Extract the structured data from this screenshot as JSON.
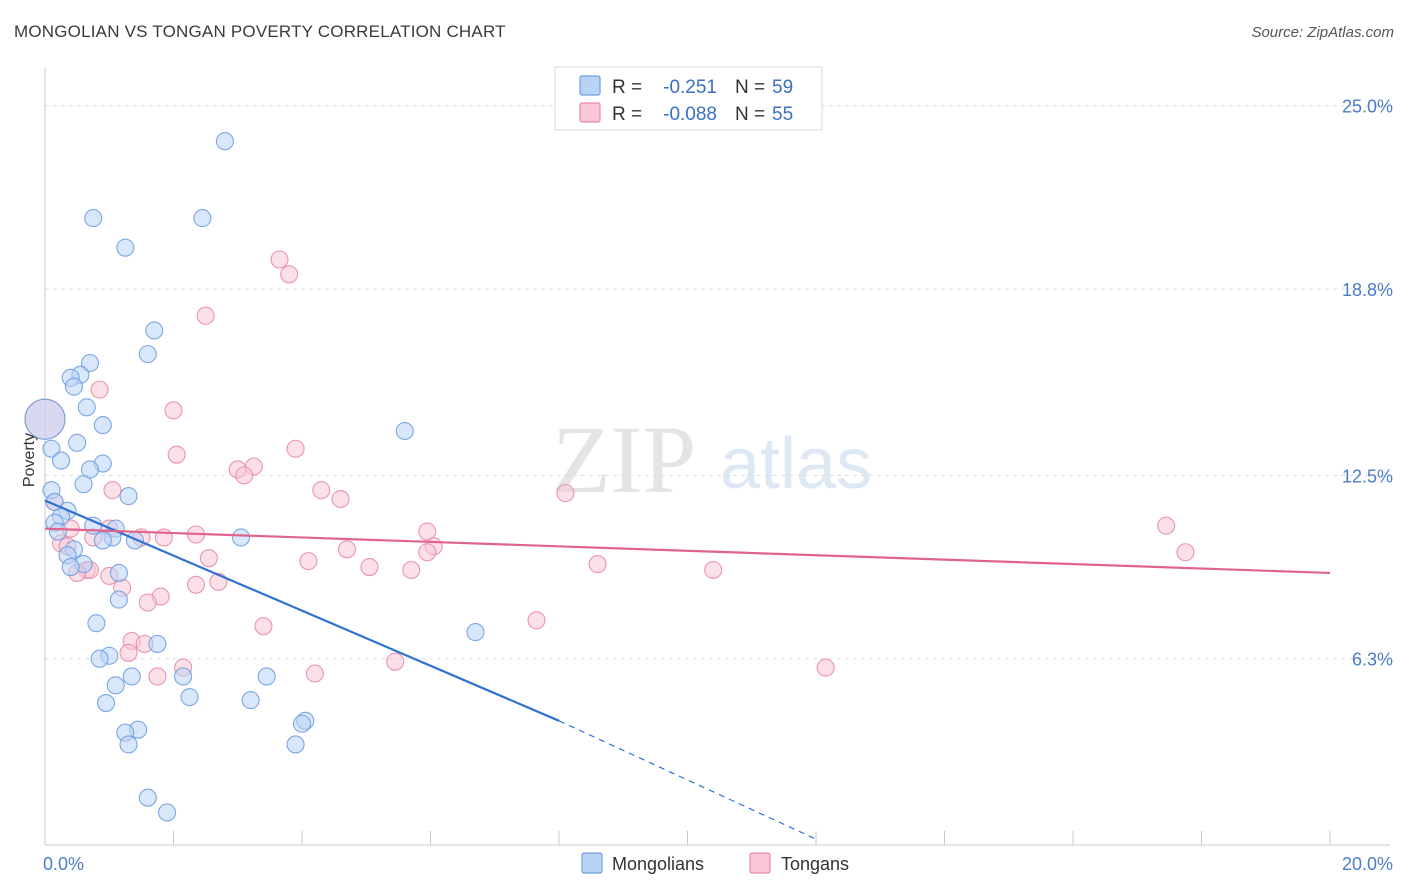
{
  "title": "MONGOLIAN VS TONGAN POVERTY CORRELATION CHART",
  "source": "Source: ZipAtlas.com",
  "watermark": {
    "part1": "ZIP",
    "part2": "atlas"
  },
  "colors": {
    "mongolians_fill": "#b9d3f5",
    "mongolians_stroke": "#6f9fe0",
    "mongolians_line": "#2f72d4",
    "tongans_fill": "#f9c7d6",
    "tongans_stroke": "#e88aa8",
    "tongans_line": "#e0648e",
    "tick_label": "#4a7cc9",
    "grid": "#dddddd"
  },
  "chart_data": {
    "type": "scatter",
    "title": "MONGOLIAN VS TONGAN POVERTY CORRELATION CHART",
    "xlabel": "",
    "ylabel": "Poverty",
    "xlim": [
      0,
      20
    ],
    "ylim": [
      0,
      25.6
    ],
    "x_tick_labels": [
      {
        "value": 0,
        "label": "0.0%"
      },
      {
        "value": 20,
        "label": "20.0%"
      }
    ],
    "y_tick_labels": [
      {
        "value": 6.3,
        "label": "6.3%"
      },
      {
        "value": 12.5,
        "label": "12.5%"
      },
      {
        "value": 18.8,
        "label": "18.8%"
      },
      {
        "value": 25.0,
        "label": "25.0%"
      }
    ],
    "grid": {
      "horizontal": true,
      "dashed": true
    },
    "legend": {
      "position": "top-center",
      "rows": [
        {
          "r_label": "R =",
          "r_value": "-0.251",
          "n_label": "N =",
          "n_value": "59"
        },
        {
          "r_label": "R =",
          "r_value": "-0.088",
          "n_label": "N =",
          "n_value": "55"
        }
      ]
    },
    "series": [
      {
        "name": "Mongolians",
        "points": [
          {
            "x": 2.8,
            "y": 23.8
          },
          {
            "x": 0.75,
            "y": 21.2
          },
          {
            "x": 2.45,
            "y": 21.2
          },
          {
            "x": 1.25,
            "y": 20.2
          },
          {
            "x": 1.7,
            "y": 17.4
          },
          {
            "x": 1.6,
            "y": 16.6
          },
          {
            "x": 0.7,
            "y": 16.3
          },
          {
            "x": 0.55,
            "y": 15.9
          },
          {
            "x": 0.4,
            "y": 15.8
          },
          {
            "x": 0.45,
            "y": 15.5
          },
          {
            "x": 0.65,
            "y": 14.8
          },
          {
            "x": 0.9,
            "y": 14.2
          },
          {
            "x": 0.0,
            "y": 14.4
          },
          {
            "x": 0.5,
            "y": 13.6
          },
          {
            "x": 0.1,
            "y": 13.4
          },
          {
            "x": 0.25,
            "y": 13.0
          },
          {
            "x": 0.9,
            "y": 12.9
          },
          {
            "x": 0.7,
            "y": 12.7
          },
          {
            "x": 0.6,
            "y": 12.2
          },
          {
            "x": 0.1,
            "y": 12.0
          },
          {
            "x": 1.3,
            "y": 11.8
          },
          {
            "x": 0.15,
            "y": 11.6
          },
          {
            "x": 0.35,
            "y": 11.3
          },
          {
            "x": 0.25,
            "y": 11.1
          },
          {
            "x": 0.15,
            "y": 10.9
          },
          {
            "x": 0.2,
            "y": 10.6
          },
          {
            "x": 0.75,
            "y": 10.8
          },
          {
            "x": 1.1,
            "y": 10.7
          },
          {
            "x": 1.05,
            "y": 10.4
          },
          {
            "x": 0.9,
            "y": 10.3
          },
          {
            "x": 1.4,
            "y": 10.3
          },
          {
            "x": 3.05,
            "y": 10.4
          },
          {
            "x": 0.45,
            "y": 10.0
          },
          {
            "x": 0.35,
            "y": 9.8
          },
          {
            "x": 0.6,
            "y": 9.5
          },
          {
            "x": 0.4,
            "y": 9.4
          },
          {
            "x": 1.15,
            "y": 9.2
          },
          {
            "x": 1.15,
            "y": 8.3
          },
          {
            "x": 5.6,
            "y": 14.0
          },
          {
            "x": 0.8,
            "y": 7.5
          },
          {
            "x": 6.7,
            "y": 7.2
          },
          {
            "x": 1.75,
            "y": 6.8
          },
          {
            "x": 1.0,
            "y": 6.4
          },
          {
            "x": 0.85,
            "y": 6.3
          },
          {
            "x": 1.35,
            "y": 5.7
          },
          {
            "x": 2.15,
            "y": 5.7
          },
          {
            "x": 3.45,
            "y": 5.7
          },
          {
            "x": 1.1,
            "y": 5.4
          },
          {
            "x": 2.25,
            "y": 5.0
          },
          {
            "x": 0.95,
            "y": 4.8
          },
          {
            "x": 3.2,
            "y": 4.9
          },
          {
            "x": 4.05,
            "y": 4.2
          },
          {
            "x": 4.0,
            "y": 4.1
          },
          {
            "x": 1.45,
            "y": 3.9
          },
          {
            "x": 1.25,
            "y": 3.8
          },
          {
            "x": 3.9,
            "y": 3.4
          },
          {
            "x": 1.3,
            "y": 3.4
          },
          {
            "x": 1.6,
            "y": 1.6
          },
          {
            "x": 1.9,
            "y": 1.1
          }
        ],
        "trend": {
          "x1": 0.0,
          "y1": 11.65,
          "x2": 8.0,
          "y2": 4.2,
          "dashed_to_x": 12.0,
          "dashed_to_y": 0.2
        }
      },
      {
        "name": "Tongans",
        "points": [
          {
            "x": 3.65,
            "y": 19.8
          },
          {
            "x": 3.8,
            "y": 19.3
          },
          {
            "x": 2.5,
            "y": 17.9
          },
          {
            "x": 0.85,
            "y": 15.4
          },
          {
            "x": 2.0,
            "y": 14.7
          },
          {
            "x": 0.0,
            "y": 14.4
          },
          {
            "x": 3.9,
            "y": 13.4
          },
          {
            "x": 2.05,
            "y": 13.2
          },
          {
            "x": 3.25,
            "y": 12.8
          },
          {
            "x": 3.0,
            "y": 12.7
          },
          {
            "x": 3.1,
            "y": 12.5
          },
          {
            "x": 1.05,
            "y": 12.0
          },
          {
            "x": 4.3,
            "y": 12.0
          },
          {
            "x": 8.1,
            "y": 11.9
          },
          {
            "x": 4.6,
            "y": 11.7
          },
          {
            "x": 0.15,
            "y": 11.6
          },
          {
            "x": 17.45,
            "y": 10.8
          },
          {
            "x": 0.4,
            "y": 10.7
          },
          {
            "x": 1.0,
            "y": 10.7
          },
          {
            "x": 5.95,
            "y": 10.6
          },
          {
            "x": 0.75,
            "y": 10.4
          },
          {
            "x": 1.5,
            "y": 10.4
          },
          {
            "x": 1.85,
            "y": 10.4
          },
          {
            "x": 2.35,
            "y": 10.5
          },
          {
            "x": 0.25,
            "y": 10.2
          },
          {
            "x": 0.35,
            "y": 10.1
          },
          {
            "x": 6.05,
            "y": 10.1
          },
          {
            "x": 5.95,
            "y": 9.9
          },
          {
            "x": 17.75,
            "y": 9.9
          },
          {
            "x": 4.7,
            "y": 10.0
          },
          {
            "x": 2.55,
            "y": 9.7
          },
          {
            "x": 4.1,
            "y": 9.6
          },
          {
            "x": 5.05,
            "y": 9.4
          },
          {
            "x": 8.6,
            "y": 9.5
          },
          {
            "x": 10.4,
            "y": 9.3
          },
          {
            "x": 5.7,
            "y": 9.3
          },
          {
            "x": 0.65,
            "y": 9.3
          },
          {
            "x": 0.7,
            "y": 9.3
          },
          {
            "x": 1.0,
            "y": 9.1
          },
          {
            "x": 2.35,
            "y": 8.8
          },
          {
            "x": 2.7,
            "y": 8.9
          },
          {
            "x": 1.2,
            "y": 8.7
          },
          {
            "x": 1.8,
            "y": 8.4
          },
          {
            "x": 1.6,
            "y": 8.2
          },
          {
            "x": 7.65,
            "y": 7.6
          },
          {
            "x": 3.4,
            "y": 7.4
          },
          {
            "x": 1.35,
            "y": 6.9
          },
          {
            "x": 1.55,
            "y": 6.8
          },
          {
            "x": 1.3,
            "y": 6.5
          },
          {
            "x": 5.45,
            "y": 6.2
          },
          {
            "x": 12.15,
            "y": 6.0
          },
          {
            "x": 2.15,
            "y": 6.0
          },
          {
            "x": 4.2,
            "y": 5.8
          },
          {
            "x": 1.75,
            "y": 5.7
          },
          {
            "x": 0.5,
            "y": 9.2
          }
        ],
        "trend": {
          "x1": 0.0,
          "y1": 10.7,
          "x2": 20.0,
          "y2": 9.2
        }
      }
    ]
  },
  "bottom_legend": [
    {
      "label": "Mongolians"
    },
    {
      "label": "Tongans"
    }
  ]
}
